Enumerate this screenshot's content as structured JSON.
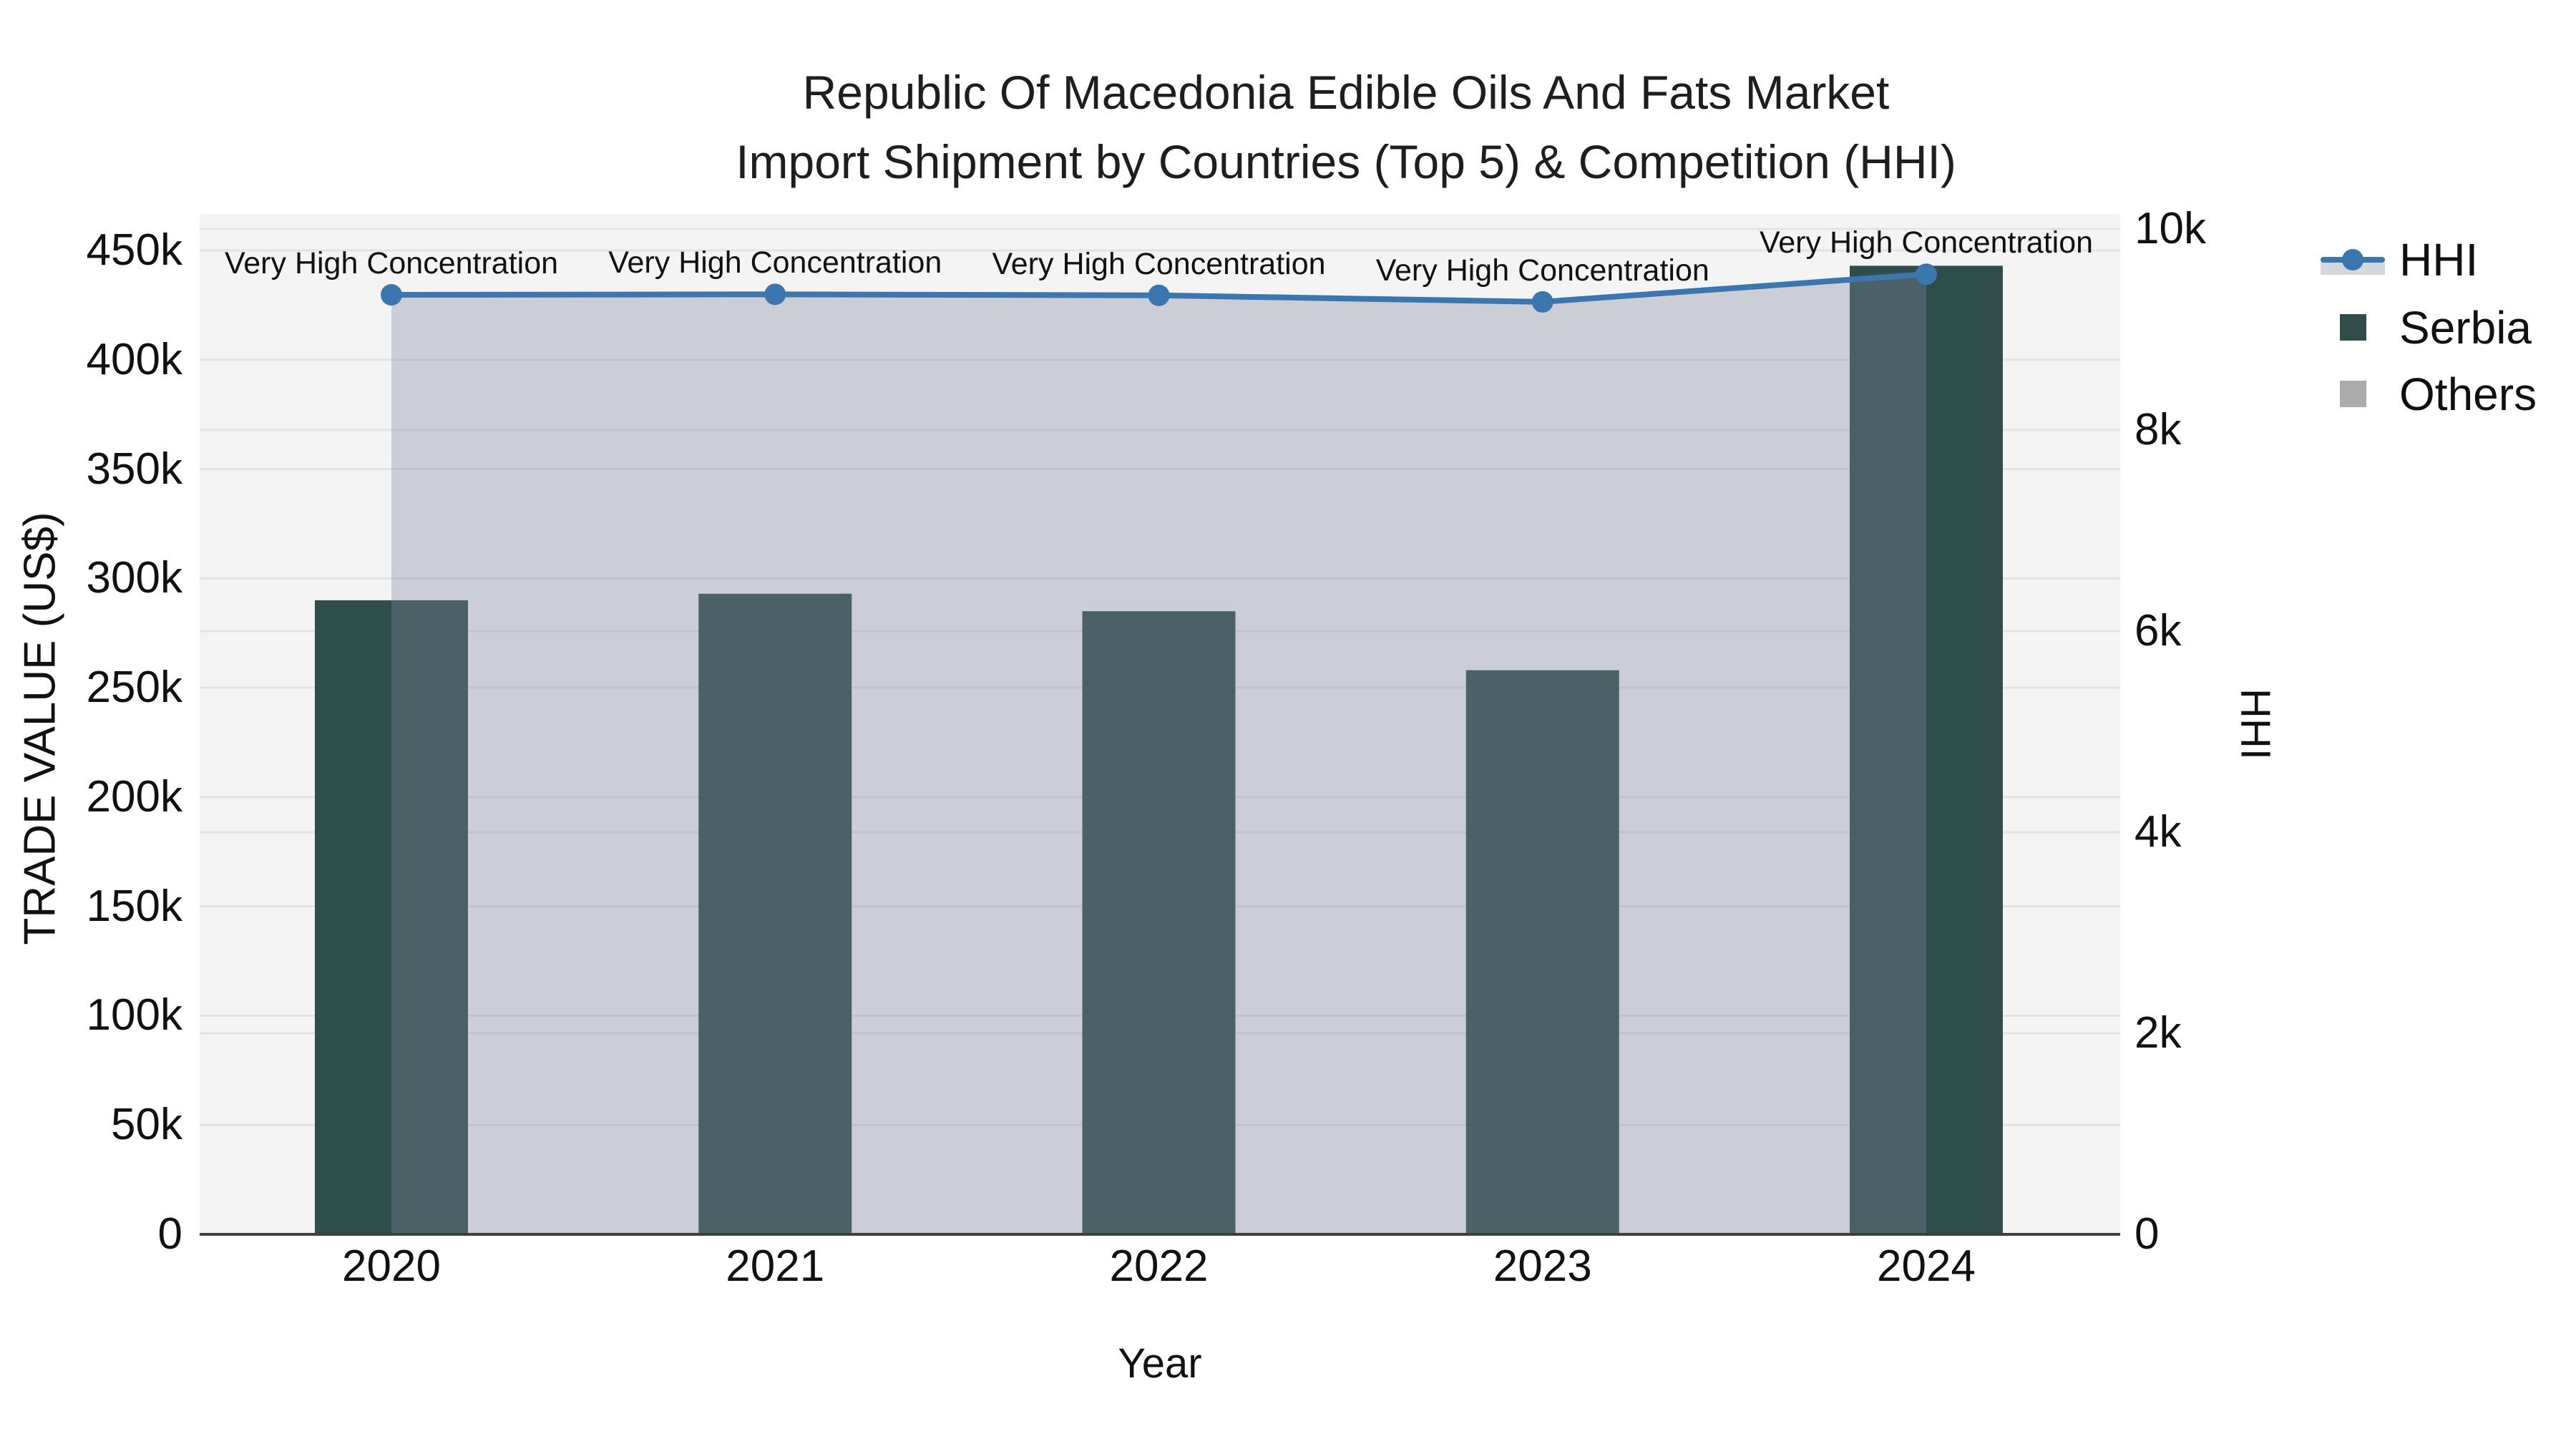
{
  "title": {
    "line1": "Republic Of Macedonia Edible Oils And Fats Market",
    "line2": "Import Shipment by Countries (Top 5) & Competition (HHI)"
  },
  "legend": [
    {
      "id": "hhi",
      "label": "HHI",
      "type": "line-marker",
      "color": "#3C76AF",
      "band_color": "#D3D7DE"
    },
    {
      "id": "serbia",
      "label": "Serbia",
      "type": "square",
      "color": "#2F4D4B"
    },
    {
      "id": "others",
      "label": "Others",
      "type": "square",
      "color": "#ABABAB"
    }
  ],
  "colors": {
    "plot_background": "#F4F4F4",
    "page_background": "#FFFFFF",
    "gridline": "#E3E3E3",
    "axis_line": "#3F3F3F",
    "serbia_bar": "#2F4D4B",
    "others_area_fill": "rgba(126,136,158,0.35)",
    "hhi_line": "#3C76AF",
    "text": "#111111"
  },
  "chart_data": {
    "type": "combo",
    "subtypes": [
      "bar",
      "area",
      "line"
    ],
    "x": [
      2020,
      2021,
      2022,
      2023,
      2024
    ],
    "series": [
      {
        "name": "Serbia",
        "type": "bar",
        "axis": "left",
        "color": "#2F4D4B",
        "values": [
          290000,
          293000,
          285000,
          258000,
          443000
        ]
      },
      {
        "name": "Others",
        "type": "area",
        "axis": "left",
        "color": "rgba(126,136,158,0.35)",
        "values": [
          430000,
          430000,
          429000,
          426000,
          439000
        ],
        "note": "semi-transparent area whose top edge follows the HHI line between 2020 and 2024"
      },
      {
        "name": "HHI",
        "type": "line",
        "axis": "right",
        "color": "#3C76AF",
        "values": [
          9345,
          9350,
          9340,
          9275,
          9550
        ]
      }
    ],
    "annotations": [
      {
        "x": 2020,
        "text": "Very High Concentration"
      },
      {
        "x": 2021,
        "text": "Very High Concentration"
      },
      {
        "x": 2022,
        "text": "Very High Concentration"
      },
      {
        "x": 2023,
        "text": "Very High Concentration"
      },
      {
        "x": 2024,
        "text": "Very High Concentration"
      }
    ],
    "x_axis": {
      "title": "Year",
      "ticks": [
        "2020",
        "2021",
        "2022",
        "2023",
        "2024"
      ]
    },
    "left_axis": {
      "title": "TRADE VALUE (US$)",
      "range": [
        0,
        466700
      ],
      "grid": true,
      "ticks": [
        {
          "label": "0",
          "value": 0
        },
        {
          "label": "50k",
          "value": 50000
        },
        {
          "label": "100k",
          "value": 100000
        },
        {
          "label": "150k",
          "value": 150000
        },
        {
          "label": "200k",
          "value": 200000
        },
        {
          "label": "250k",
          "value": 250000
        },
        {
          "label": "300k",
          "value": 300000
        },
        {
          "label": "350k",
          "value": 350000
        },
        {
          "label": "400k",
          "value": 400000
        },
        {
          "label": "450k",
          "value": 450000
        }
      ]
    },
    "right_axis": {
      "title": "HHI",
      "range": [
        0,
        10150
      ],
      "grid": true,
      "ticks": [
        {
          "label": "0",
          "value": 0
        },
        {
          "label": "2k",
          "value": 2000
        },
        {
          "label": "4k",
          "value": 4000
        },
        {
          "label": "6k",
          "value": 6000
        },
        {
          "label": "8k",
          "value": 8000
        },
        {
          "label": "10k",
          "value": 10000
        }
      ]
    },
    "legend_position": "top-right, outside plot"
  }
}
